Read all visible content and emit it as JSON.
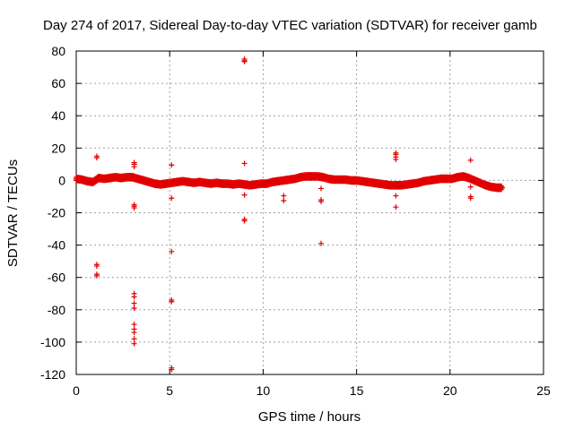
{
  "chart_data": {
    "type": "scatter",
    "title": "Day 274 of 2017, Sidereal Day-to-day VTEC variation (SDTVAR) for receiver gamb",
    "xlabel": "GPS time / hours",
    "ylabel": "SDTVAR / TECUs",
    "xlim": [
      0,
      25
    ],
    "ylim": [
      -120,
      80
    ],
    "xticks": [
      0,
      5,
      10,
      15,
      20,
      25
    ],
    "yticks": [
      -120,
      -100,
      -80,
      -60,
      -40,
      -20,
      0,
      20,
      40,
      60,
      80
    ],
    "grid": true,
    "marker": "+",
    "color": "#e00000",
    "band": [
      [
        0.0,
        1.0
      ],
      [
        0.3,
        0.5
      ],
      [
        0.6,
        -0.5
      ],
      [
        0.9,
        -1.0
      ],
      [
        1.2,
        1.5
      ],
      [
        1.5,
        1.0
      ],
      [
        1.8,
        1.5
      ],
      [
        2.1,
        2.0
      ],
      [
        2.4,
        1.5
      ],
      [
        2.7,
        2.0
      ],
      [
        3.0,
        2.0
      ],
      [
        3.3,
        1.0
      ],
      [
        3.6,
        0.0
      ],
      [
        3.9,
        -1.0
      ],
      [
        4.2,
        -2.0
      ],
      [
        4.5,
        -2.5
      ],
      [
        4.8,
        -2.0
      ],
      [
        5.1,
        -1.5
      ],
      [
        5.4,
        -1.0
      ],
      [
        5.7,
        -0.5
      ],
      [
        6.0,
        -1.0
      ],
      [
        6.3,
        -1.5
      ],
      [
        6.6,
        -1.0
      ],
      [
        6.9,
        -1.5
      ],
      [
        7.2,
        -2.0
      ],
      [
        7.5,
        -1.5
      ],
      [
        7.8,
        -2.0
      ],
      [
        8.1,
        -2.0
      ],
      [
        8.4,
        -2.5
      ],
      [
        8.7,
        -2.0
      ],
      [
        9.0,
        -2.5
      ],
      [
        9.3,
        -3.0
      ],
      [
        9.6,
        -2.5
      ],
      [
        9.9,
        -2.0
      ],
      [
        10.2,
        -2.0
      ],
      [
        10.5,
        -1.0
      ],
      [
        10.8,
        -0.5
      ],
      [
        11.1,
        0.0
      ],
      [
        11.4,
        0.5
      ],
      [
        11.7,
        1.0
      ],
      [
        12.0,
        2.0
      ],
      [
        12.3,
        2.5
      ],
      [
        12.6,
        2.5
      ],
      [
        12.9,
        2.5
      ],
      [
        13.2,
        2.0
      ],
      [
        13.5,
        1.0
      ],
      [
        13.8,
        0.5
      ],
      [
        14.1,
        0.5
      ],
      [
        14.4,
        0.5
      ],
      [
        14.7,
        0.0
      ],
      [
        15.0,
        0.0
      ],
      [
        15.3,
        -0.5
      ],
      [
        15.6,
        -1.0
      ],
      [
        15.9,
        -1.5
      ],
      [
        16.2,
        -2.0
      ],
      [
        16.5,
        -2.5
      ],
      [
        16.8,
        -3.0
      ],
      [
        17.1,
        -3.0
      ],
      [
        17.4,
        -3.0
      ],
      [
        17.7,
        -2.5
      ],
      [
        18.0,
        -2.0
      ],
      [
        18.3,
        -1.5
      ],
      [
        18.6,
        -0.5
      ],
      [
        18.9,
        0.0
      ],
      [
        19.2,
        0.5
      ],
      [
        19.5,
        1.0
      ],
      [
        19.8,
        1.0
      ],
      [
        20.1,
        1.0
      ],
      [
        20.4,
        2.0
      ],
      [
        20.7,
        2.5
      ],
      [
        21.0,
        1.5
      ],
      [
        21.3,
        0.0
      ],
      [
        21.6,
        -1.5
      ],
      [
        21.9,
        -3.0
      ],
      [
        22.2,
        -4.0
      ],
      [
        22.5,
        -4.5
      ],
      [
        22.8,
        -4.5
      ]
    ],
    "outliers": [
      [
        1.1,
        15.0
      ],
      [
        1.1,
        14.0
      ],
      [
        1.1,
        -52.0
      ],
      [
        1.1,
        -53.0
      ],
      [
        1.1,
        -58.0
      ],
      [
        1.1,
        -59.0
      ],
      [
        3.1,
        11.0
      ],
      [
        3.1,
        10.0
      ],
      [
        3.1,
        8.5
      ],
      [
        3.1,
        2.5
      ],
      [
        3.1,
        -15.0
      ],
      [
        3.1,
        -16.0
      ],
      [
        3.1,
        -17.0
      ],
      [
        3.1,
        -70.0
      ],
      [
        3.1,
        -72.0
      ],
      [
        3.1,
        -76.0
      ],
      [
        3.1,
        -79.0
      ],
      [
        3.1,
        -89.0
      ],
      [
        3.1,
        -92.0
      ],
      [
        3.1,
        -94.0
      ],
      [
        3.1,
        -98.0
      ],
      [
        3.1,
        -101.0
      ],
      [
        5.1,
        9.5
      ],
      [
        5.1,
        -11.0
      ],
      [
        5.1,
        -44.0
      ],
      [
        5.1,
        -74.0
      ],
      [
        5.1,
        -75.0
      ],
      [
        5.1,
        -116.0
      ],
      [
        5.1,
        -117.0
      ],
      [
        9.0,
        75.0
      ],
      [
        9.0,
        74.0
      ],
      [
        9.0,
        73.5
      ],
      [
        9.0,
        10.5
      ],
      [
        9.0,
        -9.0
      ],
      [
        9.0,
        -24.0
      ],
      [
        9.0,
        -25.0
      ],
      [
        11.1,
        -9.5
      ],
      [
        11.1,
        -12.5
      ],
      [
        13.1,
        -5.0
      ],
      [
        13.1,
        -12.0
      ],
      [
        13.1,
        -13.0
      ],
      [
        13.1,
        -39.0
      ],
      [
        17.1,
        17.0
      ],
      [
        17.1,
        16.0
      ],
      [
        17.1,
        14.5
      ],
      [
        17.1,
        13.0
      ],
      [
        17.1,
        -9.5
      ],
      [
        17.1,
        -16.5
      ],
      [
        21.1,
        12.5
      ],
      [
        21.1,
        -4.0
      ],
      [
        21.1,
        -10.0
      ],
      [
        21.1,
        -11.0
      ]
    ]
  }
}
